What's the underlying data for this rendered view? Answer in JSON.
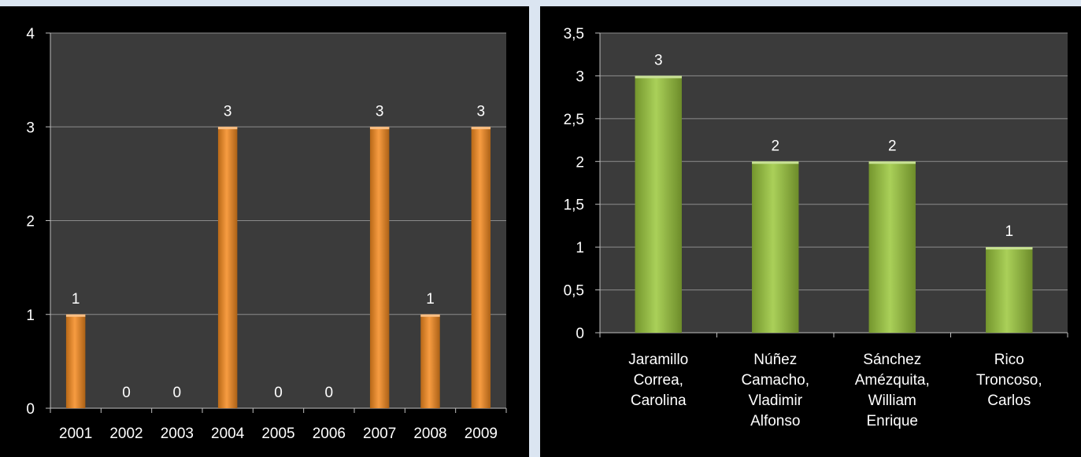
{
  "chart_data": [
    {
      "type": "bar",
      "categories": [
        "2001",
        "2002",
        "2003",
        "2004",
        "2005",
        "2006",
        "2007",
        "2008",
        "2009"
      ],
      "values": [
        1,
        0,
        0,
        3,
        0,
        0,
        3,
        1,
        3
      ],
      "y_ticks": [
        "0",
        "1",
        "2",
        "3",
        "4"
      ],
      "ylim": [
        0,
        4
      ],
      "grid": true,
      "data_labels": true,
      "bar_color": "#f58a1f",
      "background": "#3b3b3b"
    },
    {
      "type": "bar",
      "categories": [
        [
          "Jaramillo",
          "Correa,",
          "Carolina"
        ],
        [
          "Núñez",
          "Camacho,",
          "Vladimir",
          "Alfonso"
        ],
        [
          "Sánchez",
          "Amézquita,",
          "William",
          "Enrique"
        ],
        [
          "Rico",
          "Troncoso,",
          "Carlos"
        ]
      ],
      "values": [
        3,
        2,
        2,
        1
      ],
      "y_ticks": [
        "0",
        "0,5",
        "1",
        "1,5",
        "2",
        "2,5",
        "3",
        "3,5"
      ],
      "ylim": [
        0,
        3.5
      ],
      "grid": true,
      "data_labels": true,
      "bar_color": "#9bc83c",
      "background": "#3b3b3b"
    }
  ]
}
